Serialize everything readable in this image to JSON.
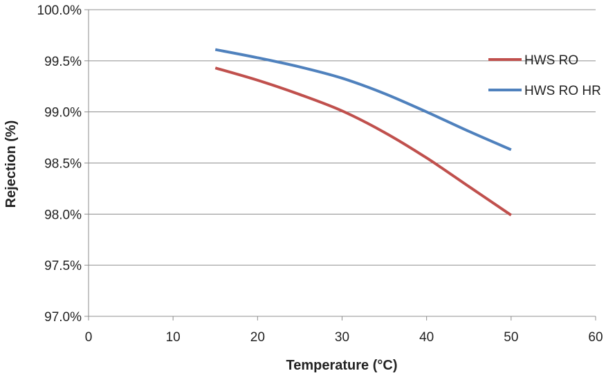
{
  "chart_data": {
    "type": "line",
    "title": "",
    "xlabel": "Temperature (°C)",
    "ylabel": "Rejection (%)",
    "xlim": [
      0,
      60
    ],
    "ylim": [
      97.0,
      100.0
    ],
    "x_ticks": [
      0,
      10,
      20,
      30,
      40,
      50,
      60
    ],
    "y_ticks": [
      97.0,
      97.5,
      98.0,
      98.5,
      99.0,
      99.5,
      100.0
    ],
    "x_tick_labels": [
      "0",
      "10",
      "20",
      "30",
      "40",
      "50",
      "60"
    ],
    "y_tick_labels": [
      "97.0%",
      "97.5%",
      "98.0%",
      "98.5%",
      "99.0%",
      "99.5%",
      "100.0%"
    ],
    "grid": {
      "horizontal": true,
      "vertical": false
    },
    "legend_position": "right",
    "series": [
      {
        "name": "HWS RO",
        "color": "#C0504D",
        "points": [
          {
            "x": 15,
            "y": 99.43
          },
          {
            "x": 20,
            "y": 99.31
          },
          {
            "x": 25,
            "y": 99.17
          },
          {
            "x": 30,
            "y": 99.01
          },
          {
            "x": 35,
            "y": 98.8
          },
          {
            "x": 40,
            "y": 98.55
          },
          {
            "x": 45,
            "y": 98.27
          },
          {
            "x": 50,
            "y": 97.99
          }
        ]
      },
      {
        "name": "HWS RO HR",
        "color": "#4F81BD",
        "points": [
          {
            "x": 15,
            "y": 99.61
          },
          {
            "x": 20,
            "y": 99.53
          },
          {
            "x": 25,
            "y": 99.44
          },
          {
            "x": 30,
            "y": 99.33
          },
          {
            "x": 35,
            "y": 99.18
          },
          {
            "x": 40,
            "y": 99.0
          },
          {
            "x": 45,
            "y": 98.81
          },
          {
            "x": 50,
            "y": 98.63
          }
        ]
      }
    ]
  }
}
